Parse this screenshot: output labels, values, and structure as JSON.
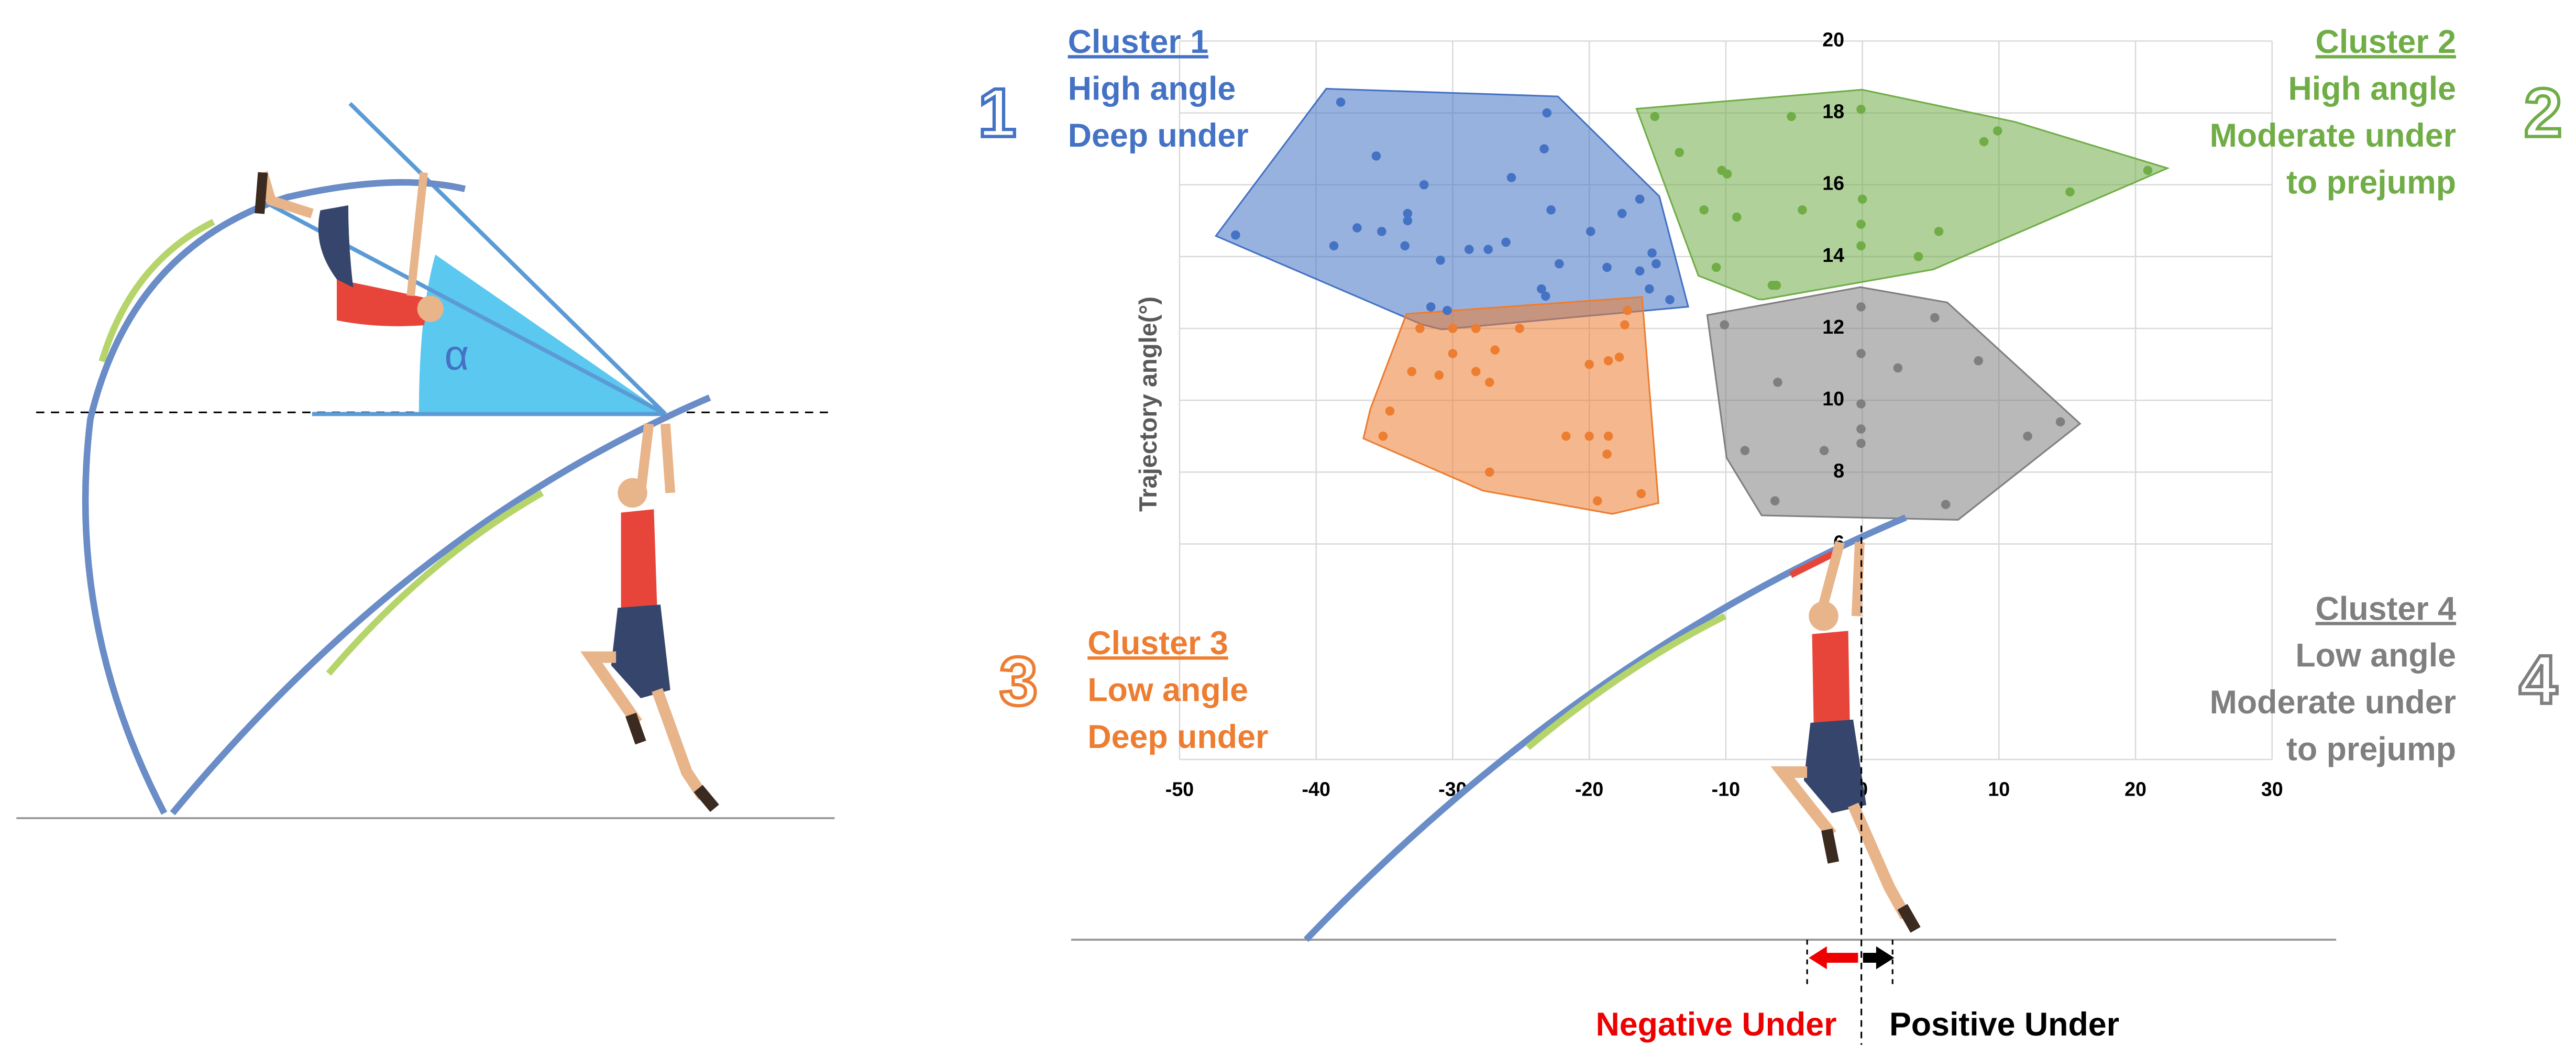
{
  "chart_data": {
    "type": "scatter",
    "y_label": "Trajectory angle(°)",
    "xlim": [
      -50,
      30
    ],
    "xticks": [
      -50,
      -40,
      -30,
      -20,
      -10,
      0,
      10,
      20,
      30
    ],
    "ylim": [
      0,
      20
    ],
    "yticks": [
      6,
      8,
      10,
      12,
      14,
      16,
      18,
      20
    ],
    "grid": true,
    "series": [
      {
        "name": "Cluster 1",
        "number": "1",
        "description": [
          "High angle",
          "Deep under"
        ],
        "color": "#4472c4",
        "x": [
          -38.2,
          -23.1,
          -35.6,
          -23.3,
          -32.1,
          -25.7,
          -22.8,
          -33.3,
          -33.3,
          -37.0,
          -45.9,
          -35.2,
          -38.7,
          -33.5,
          -28.8,
          -27.4,
          -26.1,
          -30.9,
          -22.2,
          -19.9,
          -17.6,
          -16.3,
          -15.4,
          -15.1,
          -18.7,
          -16.3,
          -14.1,
          -23.5,
          -23.2,
          -31.6,
          -30.4,
          -15.6
        ],
        "y": [
          18.3,
          18.0,
          16.8,
          17.0,
          16.0,
          16.2,
          15.3,
          15.2,
          15.0,
          14.8,
          14.6,
          14.7,
          14.3,
          14.3,
          14.2,
          14.2,
          14.4,
          13.9,
          13.8,
          14.7,
          15.2,
          15.6,
          14.1,
          13.8,
          13.7,
          13.6,
          12.8,
          13.1,
          12.9,
          12.6,
          12.5,
          13.1
        ]
      },
      {
        "name": "Cluster 2",
        "number": "2",
        "description": [
          "High  angle",
          "Moderate under",
          "to prejump"
        ],
        "color": "#70ad47",
        "x": [
          -15.2,
          -5.2,
          -0.1,
          -13.4,
          -10.3,
          -9.9,
          -9.2,
          -11.6,
          -4.4,
          0.0,
          -0.1,
          -0.1,
          5.6,
          4.1,
          -10.7,
          -6.6,
          -6.3,
          8.9,
          9.9,
          15.2,
          20.9
        ],
        "y": [
          17.9,
          17.9,
          18.1,
          16.9,
          16.4,
          16.3,
          15.1,
          15.3,
          15.3,
          15.6,
          14.9,
          14.3,
          14.7,
          14.0,
          13.7,
          13.2,
          13.2,
          17.2,
          17.5,
          15.8,
          16.4
        ]
      },
      {
        "name": "Cluster 3",
        "number": "3",
        "description": [
          "Low angle",
          "Deep under"
        ],
        "color": "#ed7d31",
        "x": [
          -32.4,
          -30.0,
          -28.3,
          -25.1,
          -26.9,
          -30.0,
          -33.0,
          -31.0,
          -28.3,
          -27.3,
          -34.6,
          -35.1,
          -17.2,
          -17.4,
          -17.8,
          -20.0,
          -18.6,
          -21.7,
          -20.0,
          -18.6,
          -18.7,
          -27.3,
          -19.4,
          -16.2
        ],
        "y": [
          12.0,
          12.0,
          12.0,
          12.0,
          11.4,
          11.3,
          10.8,
          10.7,
          10.8,
          10.5,
          9.7,
          9.0,
          12.5,
          12.1,
          11.2,
          11.0,
          11.1,
          9.0,
          9.0,
          9.0,
          8.5,
          8.0,
          7.2,
          7.4
        ]
      },
      {
        "name": "Cluster 4",
        "number": "4",
        "description": [
          "Low  angle",
          "Moderate under",
          "to prejump"
        ],
        "color": "#7f7f7f",
        "x": [
          -10.1,
          -0.1,
          -0.1,
          5.3,
          -6.2,
          2.6,
          8.5,
          -0.1,
          -0.1,
          -8.6,
          -2.8,
          -0.1,
          -6.4,
          6.1,
          12.1,
          14.5
        ],
        "y": [
          12.1,
          12.6,
          11.3,
          12.3,
          10.5,
          10.9,
          11.1,
          9.9,
          9.2,
          8.6,
          8.6,
          8.8,
          7.2,
          7.1,
          9.0,
          9.4
        ]
      }
    ],
    "annotations": {
      "angle_symbol": "α",
      "negative": "Negative Under",
      "positive": "Positive Under"
    }
  }
}
